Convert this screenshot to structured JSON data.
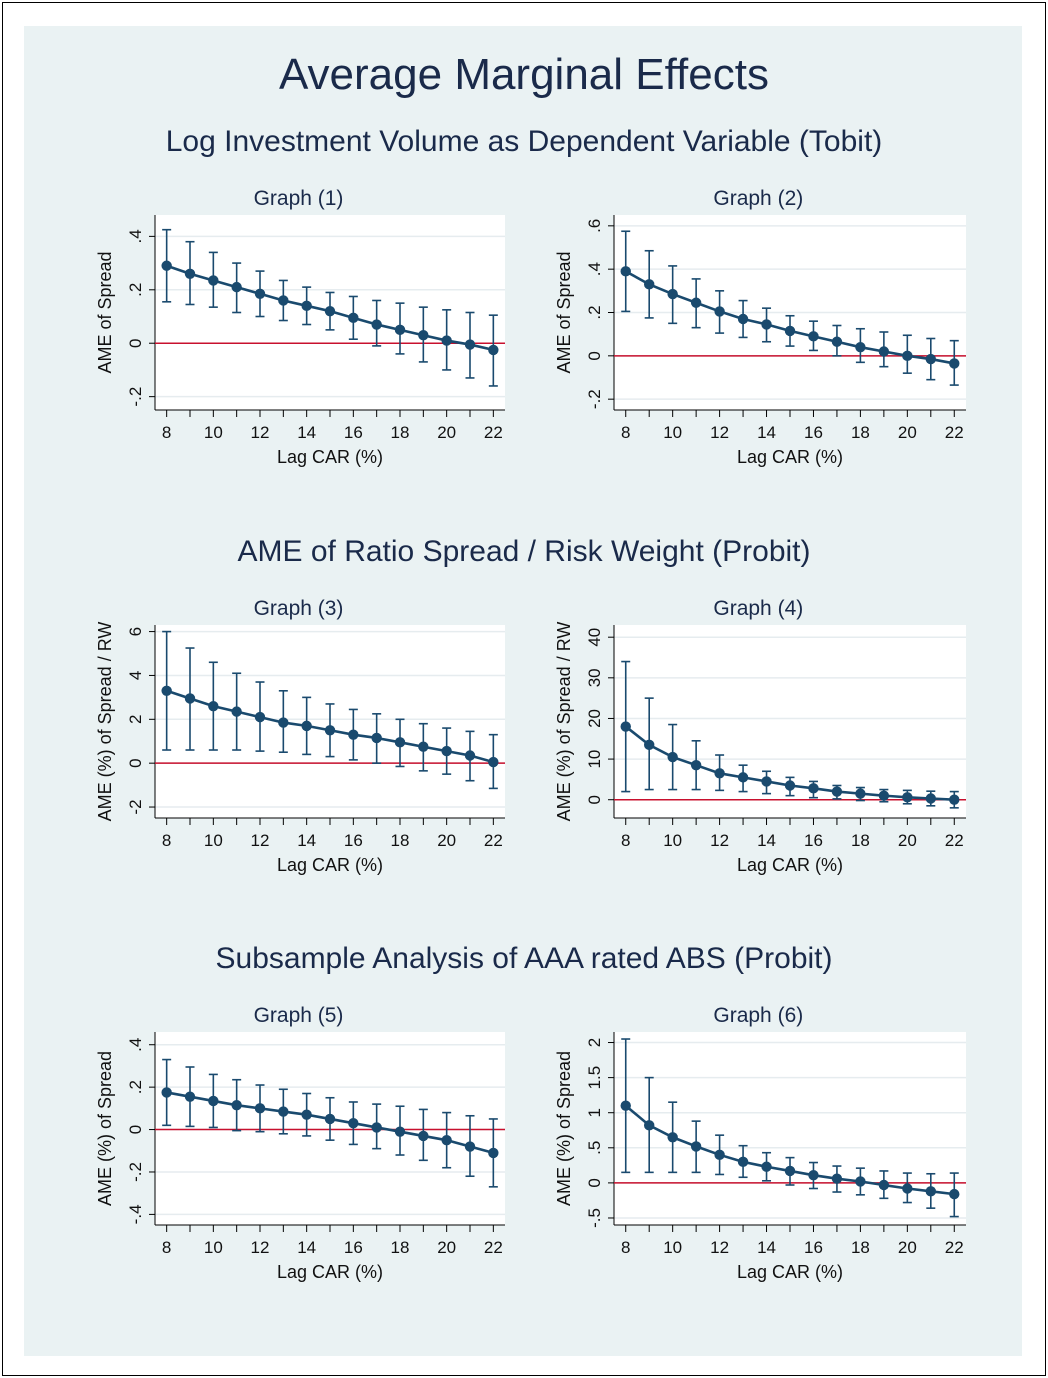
{
  "title": "Average Marginal Effects",
  "sections": [
    "Log Investment Volume as Dependent Variable (Tobit)",
    "AME of Ratio Spread / Risk Weight (Probit)",
    "Subsample Analysis of AAA rated ABS (Probit)"
  ],
  "colors": {
    "background": "#eaf2f3",
    "plot_area": "#ffffff",
    "series": "#1a4a6e",
    "zero_line": "#c8102e",
    "grid": "#e6ecef"
  },
  "chart_data": [
    {
      "type": "line",
      "title": "Graph (1)",
      "xlabel": "Lag CAR (%)",
      "ylabel": "AME of Spread",
      "xlim": [
        7.5,
        22.5
      ],
      "ylim": [
        -0.25,
        0.48
      ],
      "yticks": [
        -0.2,
        0,
        0.2,
        0.4
      ],
      "ytick_labels": [
        "-.2",
        "0",
        ".2",
        ".4"
      ],
      "xticks": [
        8,
        10,
        12,
        14,
        16,
        18,
        20,
        22
      ],
      "x": [
        8,
        9,
        10,
        11,
        12,
        13,
        14,
        15,
        16,
        17,
        18,
        19,
        20,
        21,
        22
      ],
      "series": [
        {
          "values": [
            0.29,
            0.26,
            0.235,
            0.21,
            0.185,
            0.16,
            0.14,
            0.12,
            0.095,
            0.07,
            0.05,
            0.03,
            0.01,
            -0.005,
            -0.025
          ],
          "ci_low": [
            0.155,
            0.145,
            0.135,
            0.115,
            0.1,
            0.085,
            0.07,
            0.05,
            0.015,
            -0.01,
            -0.04,
            -0.07,
            -0.1,
            -0.13,
            -0.16
          ],
          "ci_high": [
            0.425,
            0.38,
            0.34,
            0.3,
            0.27,
            0.235,
            0.21,
            0.19,
            0.175,
            0.16,
            0.15,
            0.135,
            0.125,
            0.115,
            0.105
          ]
        }
      ],
      "grid": true,
      "reference_line_y": 0
    },
    {
      "type": "line",
      "title": "Graph (2)",
      "xlabel": "Lag CAR (%)",
      "ylabel": "AME of Spread",
      "xlim": [
        7.5,
        22.5
      ],
      "ylim": [
        -0.25,
        0.65
      ],
      "yticks": [
        -0.2,
        0,
        0.2,
        0.4,
        0.6
      ],
      "ytick_labels": [
        "-.2",
        "0",
        ".2",
        ".4",
        ".6"
      ],
      "xticks": [
        8,
        10,
        12,
        14,
        16,
        18,
        20,
        22
      ],
      "x": [
        8,
        9,
        10,
        11,
        12,
        13,
        14,
        15,
        16,
        17,
        18,
        19,
        20,
        21,
        22
      ],
      "series": [
        {
          "values": [
            0.39,
            0.33,
            0.285,
            0.245,
            0.205,
            0.17,
            0.145,
            0.115,
            0.09,
            0.065,
            0.04,
            0.02,
            0.0,
            -0.015,
            -0.035
          ],
          "ci_low": [
            0.205,
            0.175,
            0.15,
            0.13,
            0.105,
            0.085,
            0.065,
            0.045,
            0.025,
            0.0,
            -0.03,
            -0.05,
            -0.08,
            -0.11,
            -0.135
          ],
          "ci_high": [
            0.575,
            0.485,
            0.415,
            0.355,
            0.3,
            0.255,
            0.22,
            0.185,
            0.16,
            0.14,
            0.125,
            0.11,
            0.095,
            0.08,
            0.07
          ]
        }
      ],
      "grid": true,
      "reference_line_y": 0
    },
    {
      "type": "line",
      "title": "Graph (3)",
      "xlabel": "Lag CAR (%)",
      "ylabel": "AME (%) of Spread / RW",
      "xlim": [
        7.5,
        22.5
      ],
      "ylim": [
        -2.5,
        6.3
      ],
      "yticks": [
        -2,
        0,
        2,
        4,
        6
      ],
      "ytick_labels": [
        "-2",
        "0",
        "2",
        "4",
        "6"
      ],
      "xticks": [
        8,
        10,
        12,
        14,
        16,
        18,
        20,
        22
      ],
      "x": [
        8,
        9,
        10,
        11,
        12,
        13,
        14,
        15,
        16,
        17,
        18,
        19,
        20,
        21,
        22
      ],
      "series": [
        {
          "values": [
            3.3,
            2.95,
            2.6,
            2.35,
            2.1,
            1.85,
            1.7,
            1.5,
            1.3,
            1.15,
            0.95,
            0.75,
            0.55,
            0.35,
            0.05
          ],
          "ci_low": [
            0.6,
            0.6,
            0.6,
            0.6,
            0.55,
            0.5,
            0.4,
            0.3,
            0.15,
            0.0,
            -0.15,
            -0.35,
            -0.5,
            -0.8,
            -1.15
          ],
          "ci_high": [
            6.0,
            5.25,
            4.6,
            4.1,
            3.7,
            3.3,
            3.0,
            2.7,
            2.45,
            2.25,
            2.0,
            1.8,
            1.6,
            1.45,
            1.3
          ]
        }
      ],
      "grid": true,
      "reference_line_y": 0
    },
    {
      "type": "line",
      "title": "Graph (4)",
      "xlabel": "Lag CAR (%)",
      "ylabel": "AME (%) of Spread / RW",
      "xlim": [
        7.5,
        22.5
      ],
      "ylim": [
        -4.5,
        43
      ],
      "yticks": [
        0,
        10,
        20,
        30,
        40
      ],
      "ytick_labels": [
        "0",
        "10",
        "20",
        "30",
        "40"
      ],
      "xticks": [
        8,
        10,
        12,
        14,
        16,
        18,
        20,
        22
      ],
      "x": [
        8,
        9,
        10,
        11,
        12,
        13,
        14,
        15,
        16,
        17,
        18,
        19,
        20,
        21,
        22
      ],
      "series": [
        {
          "values": [
            18.0,
            13.5,
            10.5,
            8.5,
            6.5,
            5.5,
            4.5,
            3.5,
            2.8,
            2.0,
            1.5,
            1.0,
            0.6,
            0.3,
            0.0
          ],
          "ci_low": [
            2.0,
            2.5,
            2.5,
            2.5,
            2.3,
            2.0,
            1.5,
            1.0,
            0.5,
            0.2,
            -0.2,
            -0.5,
            -1.0,
            -1.5,
            -2.0
          ],
          "ci_high": [
            34.0,
            25.0,
            18.5,
            14.5,
            11.0,
            8.5,
            7.0,
            5.5,
            4.5,
            3.5,
            3.0,
            2.5,
            2.3,
            2.1,
            2.0
          ]
        }
      ],
      "grid": true,
      "reference_line_y": 0
    },
    {
      "type": "line",
      "title": "Graph (5)",
      "xlabel": "Lag CAR (%)",
      "ylabel": "AME (%) of Spread",
      "xlim": [
        7.5,
        22.5
      ],
      "ylim": [
        -0.45,
        0.46
      ],
      "yticks": [
        -0.4,
        -0.2,
        0,
        0.2,
        0.4
      ],
      "ytick_labels": [
        "-.4",
        "-.2",
        "0",
        ".2",
        ".4"
      ],
      "xticks": [
        8,
        10,
        12,
        14,
        16,
        18,
        20,
        22
      ],
      "x": [
        8,
        9,
        10,
        11,
        12,
        13,
        14,
        15,
        16,
        17,
        18,
        19,
        20,
        21,
        22
      ],
      "series": [
        {
          "values": [
            0.175,
            0.155,
            0.135,
            0.115,
            0.1,
            0.085,
            0.07,
            0.05,
            0.03,
            0.01,
            -0.01,
            -0.03,
            -0.05,
            -0.08,
            -0.11
          ],
          "ci_low": [
            0.02,
            0.015,
            0.01,
            -0.005,
            -0.01,
            -0.02,
            -0.03,
            -0.05,
            -0.07,
            -0.09,
            -0.12,
            -0.145,
            -0.18,
            -0.22,
            -0.27
          ],
          "ci_high": [
            0.33,
            0.295,
            0.26,
            0.235,
            0.21,
            0.19,
            0.17,
            0.15,
            0.13,
            0.12,
            0.11,
            0.095,
            0.08,
            0.065,
            0.05
          ]
        }
      ],
      "grid": true,
      "reference_line_y": 0
    },
    {
      "type": "line",
      "title": "Graph (6)",
      "xlabel": "Lag CAR (%)",
      "ylabel": "AME (%) of Spread",
      "xlim": [
        7.5,
        22.5
      ],
      "ylim": [
        -0.6,
        2.15
      ],
      "yticks": [
        -0.5,
        0,
        0.5,
        1,
        1.5,
        2
      ],
      "ytick_labels": [
        "-.5",
        "0",
        ".5",
        "1",
        "1.5",
        "2"
      ],
      "xticks": [
        8,
        10,
        12,
        14,
        16,
        18,
        20,
        22
      ],
      "x": [
        8,
        9,
        10,
        11,
        12,
        13,
        14,
        15,
        16,
        17,
        18,
        19,
        20,
        21,
        22
      ],
      "series": [
        {
          "values": [
            1.1,
            0.82,
            0.65,
            0.52,
            0.4,
            0.3,
            0.23,
            0.17,
            0.11,
            0.06,
            0.02,
            -0.03,
            -0.08,
            -0.12,
            -0.16
          ],
          "ci_low": [
            0.15,
            0.15,
            0.15,
            0.15,
            0.12,
            0.08,
            0.03,
            -0.03,
            -0.08,
            -0.13,
            -0.17,
            -0.22,
            -0.28,
            -0.36,
            -0.48
          ],
          "ci_high": [
            2.05,
            1.5,
            1.15,
            0.88,
            0.68,
            0.53,
            0.43,
            0.36,
            0.29,
            0.24,
            0.21,
            0.17,
            0.14,
            0.13,
            0.14
          ]
        }
      ],
      "grid": true,
      "reference_line_y": 0
    }
  ]
}
